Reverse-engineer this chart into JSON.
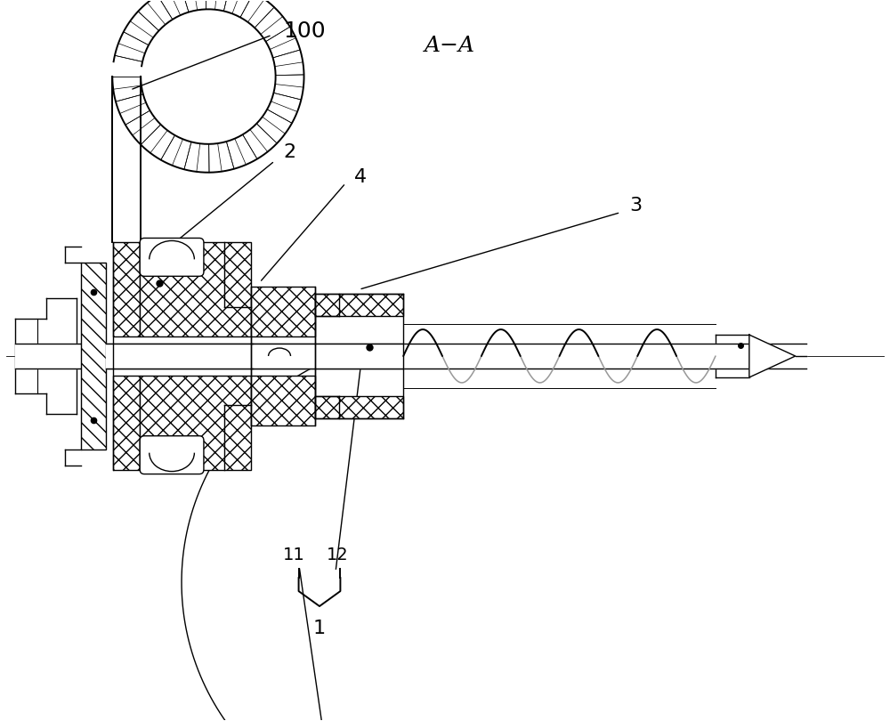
{
  "title": "A−A",
  "label_100": "100",
  "label_1": "1",
  "label_2": "2",
  "label_3": "3",
  "label_4": "4",
  "label_11": "11",
  "label_12": "12",
  "bg_color": "#ffffff",
  "line_color": "#000000",
  "font_size_labels": 16,
  "font_size_title": 18,
  "fig_w": 10.0,
  "fig_h": 8.1,
  "dpi": 100
}
